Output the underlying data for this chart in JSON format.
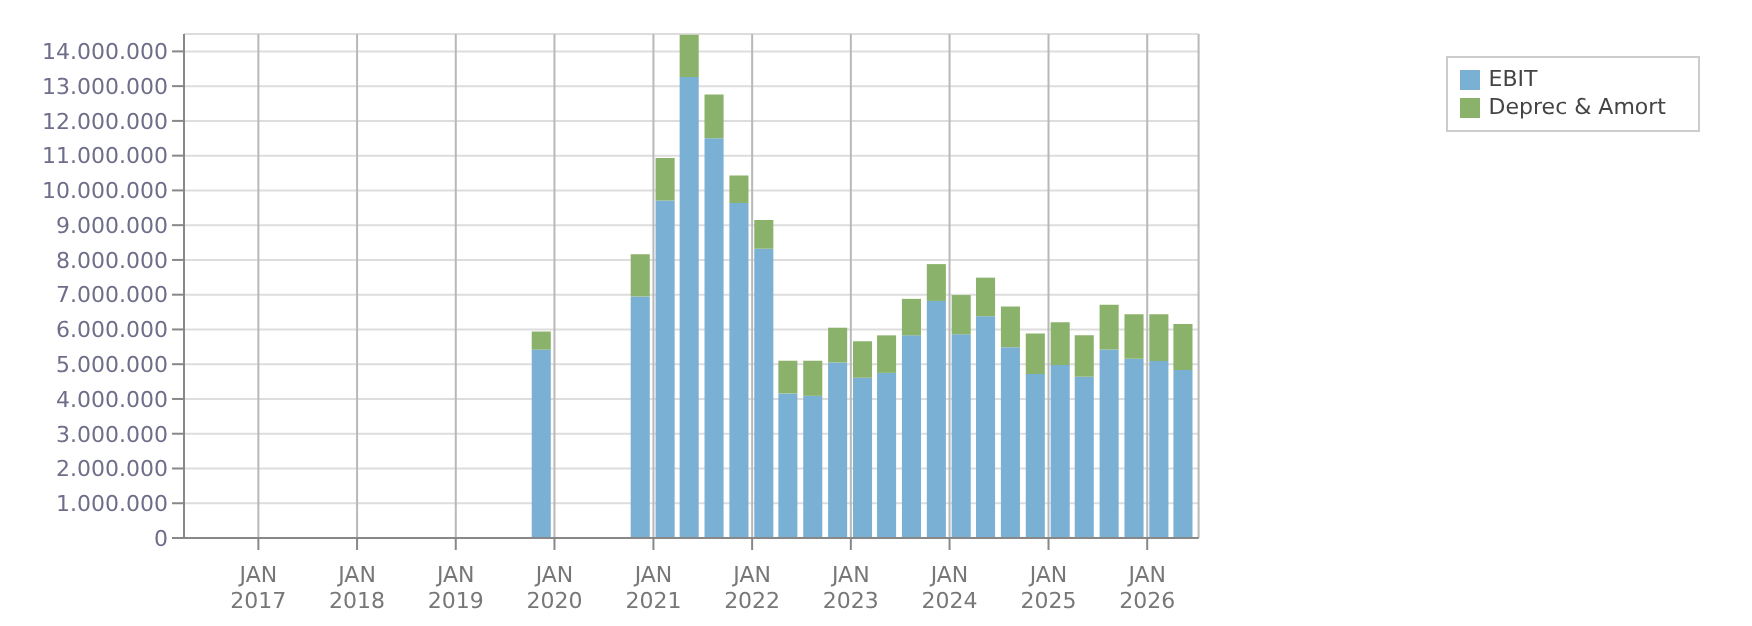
{
  "chart_data": {
    "type": "bar",
    "stacked": true,
    "x": [
      "2019-11-15",
      "2020-11-15",
      "2021-02-15",
      "2021-05-15",
      "2021-08-15",
      "2021-11-15",
      "2022-02-15",
      "2022-05-15",
      "2022-08-15",
      "2022-11-15",
      "2023-02-15",
      "2023-05-15",
      "2023-08-15",
      "2023-11-15",
      "2024-02-15",
      "2024-05-15",
      "2024-08-15",
      "2024-11-15",
      "2025-02-15",
      "2025-05-15",
      "2025-08-15",
      "2025-11-15",
      "2026-02-15",
      "2026-05-15"
    ],
    "series": [
      {
        "name": "EBIT",
        "color": "#7ab0d3",
        "values": [
          5420000,
          6950000,
          9710000,
          13260000,
          11500000,
          9640000,
          8320000,
          4160000,
          4090000,
          5050000,
          4610000,
          4750000,
          5830000,
          6820000,
          5860000,
          6380000,
          5490000,
          4720000,
          4980000,
          4640000,
          5420000,
          5160000,
          5090000,
          4830000
        ]
      },
      {
        "name": "Deprec & Amort",
        "color": "#8bb26a",
        "values": [
          520000,
          1210000,
          1220000,
          1220000,
          1260000,
          790000,
          830000,
          940000,
          1010000,
          1000000,
          1050000,
          1080000,
          1050000,
          1060000,
          1130000,
          1110000,
          1170000,
          1160000,
          1230000,
          1190000,
          1290000,
          1280000,
          1350000,
          1330000
        ]
      }
    ],
    "xlim": [
      "2016-04-01",
      "2026-07-10"
    ],
    "xticks": [
      {
        "value": "2017-01-01",
        "label": "JAN\n2017"
      },
      {
        "value": "2018-01-01",
        "label": "JAN\n2018"
      },
      {
        "value": "2019-01-01",
        "label": "JAN\n2019"
      },
      {
        "value": "2020-01-01",
        "label": "JAN\n2020"
      },
      {
        "value": "2021-01-01",
        "label": "JAN\n2021"
      },
      {
        "value": "2022-01-01",
        "label": "JAN\n2022"
      },
      {
        "value": "2023-01-01",
        "label": "JAN\n2023"
      },
      {
        "value": "2024-01-01",
        "label": "JAN\n2024"
      },
      {
        "value": "2025-01-01",
        "label": "JAN\n2025"
      },
      {
        "value": "2026-01-01",
        "label": "JAN\n2026"
      }
    ],
    "ylim": [
      0,
      14500000
    ],
    "yticks": [
      0,
      {
        "value": 1000000,
        "label": "1.000.000"
      },
      {
        "value": 2000000,
        "label": "2.000.000"
      },
      {
        "value": 3000000,
        "label": "3.000.000"
      },
      {
        "value": 4000000,
        "label": "4.000.000"
      },
      {
        "value": 5000000,
        "label": "5.000.000"
      },
      {
        "value": 6000000,
        "label": "6.000.000"
      },
      {
        "value": 7000000,
        "label": "7.000.000"
      },
      {
        "value": 8000000,
        "label": "8.000.000"
      },
      {
        "value": 9000000,
        "label": "9.000.000"
      },
      {
        "value": 10000000,
        "label": "10.000.000"
      },
      {
        "value": 11000000,
        "label": "11.000.000"
      },
      {
        "value": 12000000,
        "label": "12.000.000"
      },
      {
        "value": 13000000,
        "label": "13.000.000"
      },
      {
        "value": 14000000,
        "label": "14.000.000"
      }
    ],
    "grid": true,
    "legend": "top right"
  }
}
